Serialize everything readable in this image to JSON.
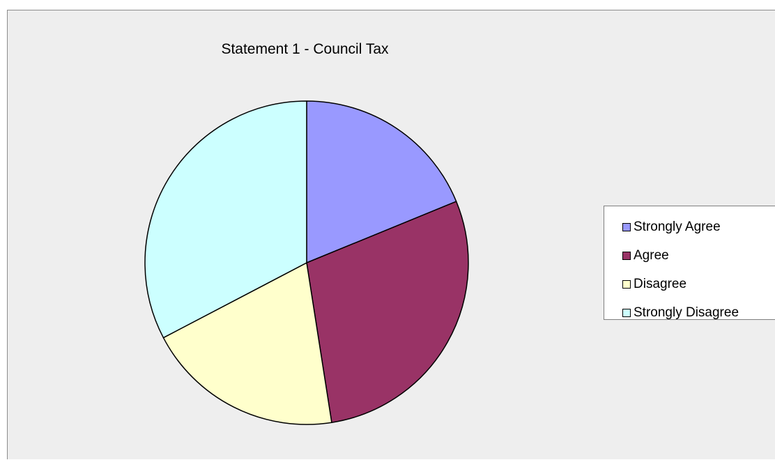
{
  "chart_data": {
    "type": "pie",
    "title": "Statement 1 - Council Tax",
    "categories": [
      "Strongly Agree",
      "Agree",
      "Disagree",
      "Strongly Disagree"
    ],
    "values": [
      19,
      29,
      20,
      33
    ],
    "colors": [
      "#9999ff",
      "#993366",
      "#ffffcc",
      "#ccffff"
    ],
    "legend_position": "right"
  }
}
